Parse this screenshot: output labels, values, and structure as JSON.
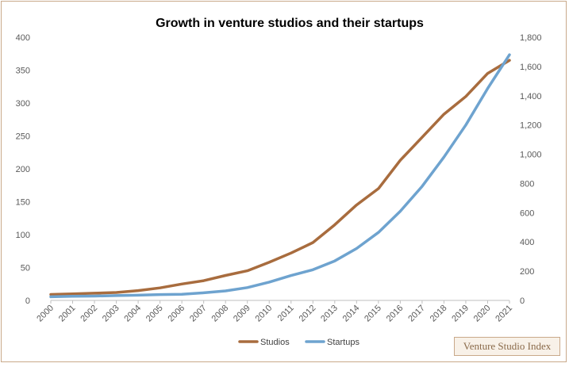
{
  "chart_data": {
    "type": "line",
    "title": "Growth in venture studios and their startups",
    "categories": [
      "2000",
      "2001",
      "2002",
      "2003",
      "2004",
      "2005",
      "2006",
      "2007",
      "2008",
      "2009",
      "2010",
      "2011",
      "2012",
      "2013",
      "2014",
      "2015",
      "2016",
      "2017",
      "2018",
      "2019",
      "2020",
      "2021"
    ],
    "series": [
      {
        "name": "Studios",
        "axis": "left",
        "color": "#a86c3e",
        "values": [
          9,
          10,
          11,
          12,
          15,
          19,
          25,
          30,
          38,
          45,
          58,
          72,
          88,
          115,
          145,
          170,
          213,
          248,
          283,
          310,
          345,
          365
        ]
      },
      {
        "name": "Startups",
        "axis": "right",
        "color": "#6ea3cf",
        "values": [
          25,
          28,
          30,
          33,
          36,
          40,
          42,
          52,
          65,
          88,
          125,
          170,
          210,
          270,
          355,
          465,
          610,
          780,
          980,
          1200,
          1450,
          1680
        ]
      }
    ],
    "y_left": {
      "min": 0,
      "max": 400,
      "ticks": [
        "0",
        "50",
        "100",
        "150",
        "200",
        "250",
        "300",
        "350",
        "400"
      ]
    },
    "y_right": {
      "min": 0,
      "max": 1800,
      "ticks": [
        "0",
        "200",
        "400",
        "600",
        "800",
        "1,000",
        "1,200",
        "1,400",
        "1,600",
        "1,800"
      ]
    },
    "legend_position": "bottom",
    "grid": false
  },
  "watermark": "Venture Studio Index"
}
